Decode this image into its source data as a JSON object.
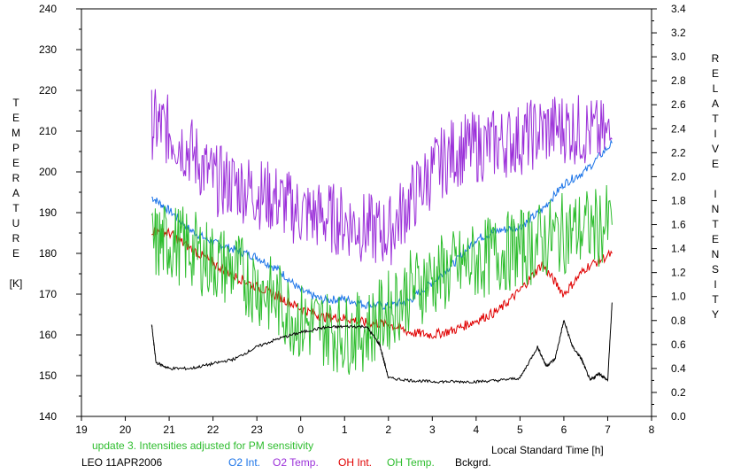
{
  "chart_data": {
    "type": "line",
    "xlabel": "Local Standard Time [h]",
    "ylabel_left_letters": [
      "T",
      "E",
      "M",
      "P",
      "E",
      "R",
      "A",
      "T",
      "U",
      "R",
      "E",
      "",
      "[K]"
    ],
    "ylabel_right_letters": [
      "R",
      "E",
      "L",
      "A",
      "T",
      "I",
      "V",
      "E",
      "",
      "I",
      "N",
      "T",
      "E",
      "N",
      "S",
      "I",
      "T",
      "Y"
    ],
    "x_tick_labels": [
      "19",
      "20",
      "21",
      "22",
      "23",
      "0",
      "1",
      "2",
      "3",
      "4",
      "5",
      "6",
      "7",
      "8"
    ],
    "x_tick_hours": [
      19,
      20,
      21,
      22,
      23,
      24,
      25,
      26,
      27,
      28,
      29,
      30,
      31,
      32
    ],
    "xlim": [
      19,
      32
    ],
    "ylim_left": [
      140,
      240
    ],
    "ylim_right": [
      0.0,
      3.4
    ],
    "y_left_ticks": [
      "140",
      "150",
      "160",
      "170",
      "180",
      "190",
      "200",
      "210",
      "220",
      "230",
      "240"
    ],
    "y_right_ticks": [
      "0.0",
      "0.2",
      "0.4",
      "0.6",
      "0.8",
      "1.0",
      "1.2",
      "1.4",
      "1.6",
      "1.8",
      "2.0",
      "2.2",
      "2.4",
      "2.6",
      "2.8",
      "3.0",
      "3.2",
      "3.4"
    ],
    "note": "update 3. Intensities adjusted for PM sensitivity",
    "station": "LEO 11APR2006",
    "colors": {
      "o2_int": "#1a73e8",
      "o2_temp": "#9b30d9",
      "oh_int": "#e00000",
      "oh_temp": "#2ebd2e",
      "bckgrd": "#000000",
      "note": "#2ebd2e"
    },
    "series": [
      {
        "name": "O2 Int.",
        "axis": "right",
        "x": [
          20.6,
          21.0,
          21.5,
          22.0,
          22.5,
          23.0,
          23.5,
          24.0,
          24.5,
          25.0,
          25.5,
          26.0,
          26.5,
          27.0,
          27.5,
          28.0,
          28.5,
          29.0,
          29.5,
          30.0,
          30.5,
          31.1
        ],
        "y": [
          1.83,
          1.72,
          1.55,
          1.45,
          1.39,
          1.33,
          1.22,
          1.05,
          0.97,
          0.98,
          0.93,
          0.92,
          0.97,
          1.12,
          1.28,
          1.48,
          1.55,
          1.58,
          1.72,
          1.94,
          2.05,
          2.28
        ]
      },
      {
        "name": "O2 Temp.",
        "axis": "left",
        "x": [
          20.6,
          21.0,
          21.5,
          22.0,
          22.5,
          23.0,
          23.5,
          24.0,
          24.5,
          25.0,
          25.5,
          26.0,
          26.5,
          27.0,
          27.5,
          28.0,
          28.5,
          29.0,
          29.5,
          30.0,
          30.5,
          31.1
        ],
        "y": [
          212,
          210,
          205,
          198,
          197,
          195,
          193,
          190,
          189,
          188,
          186,
          185,
          193,
          200,
          205,
          206,
          207,
          208,
          210,
          211,
          210,
          208
        ]
      },
      {
        "name": "OH Int.",
        "axis": "right",
        "x": [
          20.6,
          21.0,
          21.5,
          22.0,
          22.5,
          23.0,
          23.5,
          24.0,
          24.5,
          25.0,
          25.5,
          26.0,
          26.5,
          27.0,
          27.5,
          28.0,
          28.5,
          29.0,
          29.5,
          30.0,
          30.5,
          31.1
        ],
        "y": [
          1.55,
          1.53,
          1.4,
          1.28,
          1.17,
          1.08,
          1.0,
          0.9,
          0.83,
          0.82,
          0.78,
          0.77,
          0.7,
          0.68,
          0.72,
          0.8,
          0.88,
          1.05,
          1.27,
          1.02,
          1.24,
          1.36
        ]
      },
      {
        "name": "OH Temp.",
        "axis": "left",
        "x": [
          20.6,
          21.0,
          21.5,
          22.0,
          22.5,
          23.0,
          23.5,
          24.0,
          24.5,
          25.0,
          25.5,
          26.0,
          26.5,
          27.0,
          27.5,
          28.0,
          28.5,
          29.0,
          29.5,
          30.0,
          30.5,
          31.1
        ],
        "y": [
          182,
          183,
          181,
          178,
          176,
          172,
          168,
          163,
          162,
          160,
          161,
          166,
          171,
          174,
          176,
          178,
          180,
          181,
          183,
          185,
          186,
          187
        ]
      },
      {
        "name": "Bckgrd.",
        "axis": "right",
        "x": [
          20.6,
          20.7,
          21.0,
          21.5,
          22.0,
          22.5,
          23.0,
          23.5,
          24.0,
          24.5,
          25.0,
          25.5,
          25.8,
          26.0,
          26.5,
          27.0,
          27.5,
          28.0,
          28.5,
          29.0,
          29.4,
          29.6,
          29.8,
          30.0,
          30.2,
          30.4,
          30.6,
          30.8,
          31.0,
          31.1
        ],
        "y": [
          0.77,
          0.45,
          0.4,
          0.4,
          0.44,
          0.48,
          0.58,
          0.65,
          0.7,
          0.74,
          0.75,
          0.75,
          0.6,
          0.32,
          0.3,
          0.29,
          0.29,
          0.29,
          0.3,
          0.32,
          0.58,
          0.42,
          0.48,
          0.8,
          0.58,
          0.48,
          0.3,
          0.36,
          0.3,
          0.95
        ]
      }
    ]
  }
}
